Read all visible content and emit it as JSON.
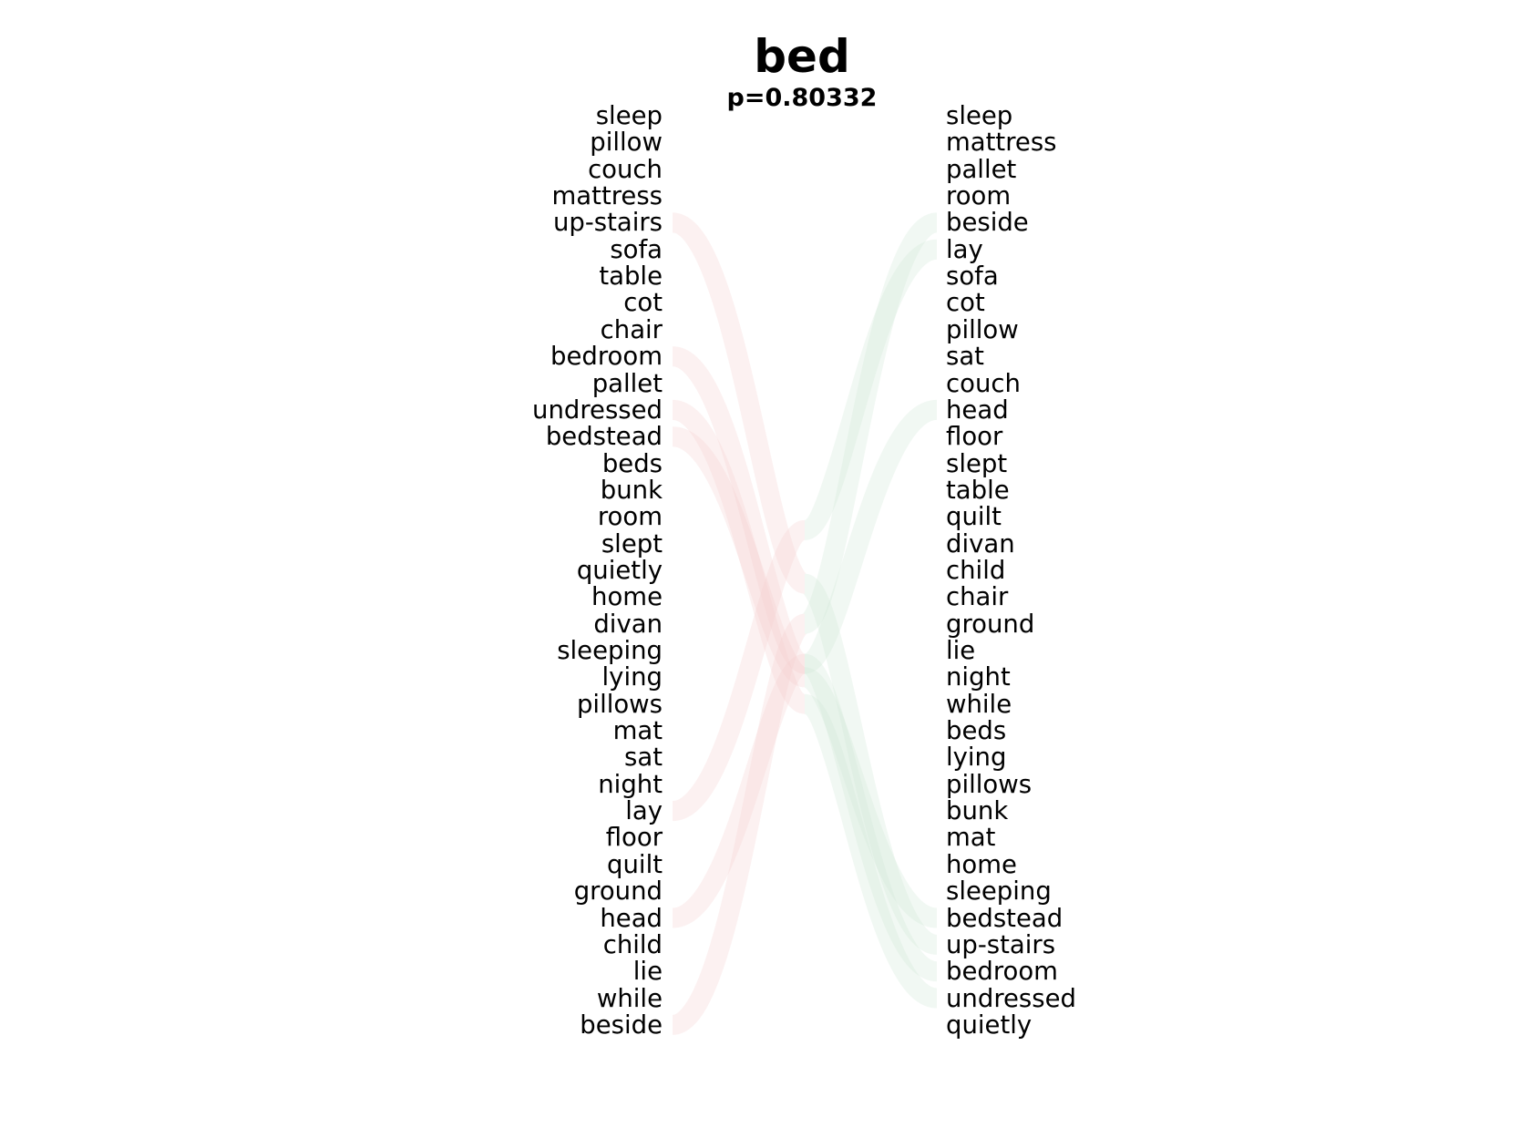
{
  "title": "bed",
  "subtitle": "p=0.80332",
  "colors": {
    "left_flow": "#f4cccc",
    "right_flow": "#cfe8d6"
  },
  "left_words": [
    "sleep",
    "pillow",
    "couch",
    "mattress",
    "up-stairs",
    "sofa",
    "table",
    "cot",
    "chair",
    "bedroom",
    "pallet",
    "undressed",
    "bedstead",
    "beds",
    "bunk",
    "room",
    "slept",
    "quietly",
    "home",
    "divan",
    "sleeping",
    "lying",
    "pillows",
    "mat",
    "sat",
    "night",
    "lay",
    "floor",
    "quilt",
    "ground",
    "head",
    "child",
    "lie",
    "while",
    "beside"
  ],
  "right_words": [
    "sleep",
    "mattress",
    "pallet",
    "room",
    "beside",
    "lay",
    "sofa",
    "cot",
    "pillow",
    "sat",
    "couch",
    "head",
    "floor",
    "slept",
    "table",
    "quilt",
    "divan",
    "child",
    "chair",
    "ground",
    "lie",
    "night",
    "while",
    "beds",
    "lying",
    "pillows",
    "bunk",
    "mat",
    "home",
    "sleeping",
    "bedstead",
    "up-stairs",
    "bedroom",
    "undressed",
    "quietly"
  ],
  "flows": [
    {
      "word": "up-stairs",
      "from_left": 4,
      "to_right": 31
    },
    {
      "word": "bedroom",
      "from_left": 9,
      "to_right": 32
    },
    {
      "word": "undressed",
      "from_left": 11,
      "to_right": 33
    },
    {
      "word": "bedstead",
      "from_left": 12,
      "to_right": 30
    },
    {
      "word": "lay",
      "from_left": 26,
      "to_right": 5
    },
    {
      "word": "head",
      "from_left": 30,
      "to_right": 11
    },
    {
      "word": "beside",
      "from_left": 34,
      "to_right": 4
    }
  ]
}
